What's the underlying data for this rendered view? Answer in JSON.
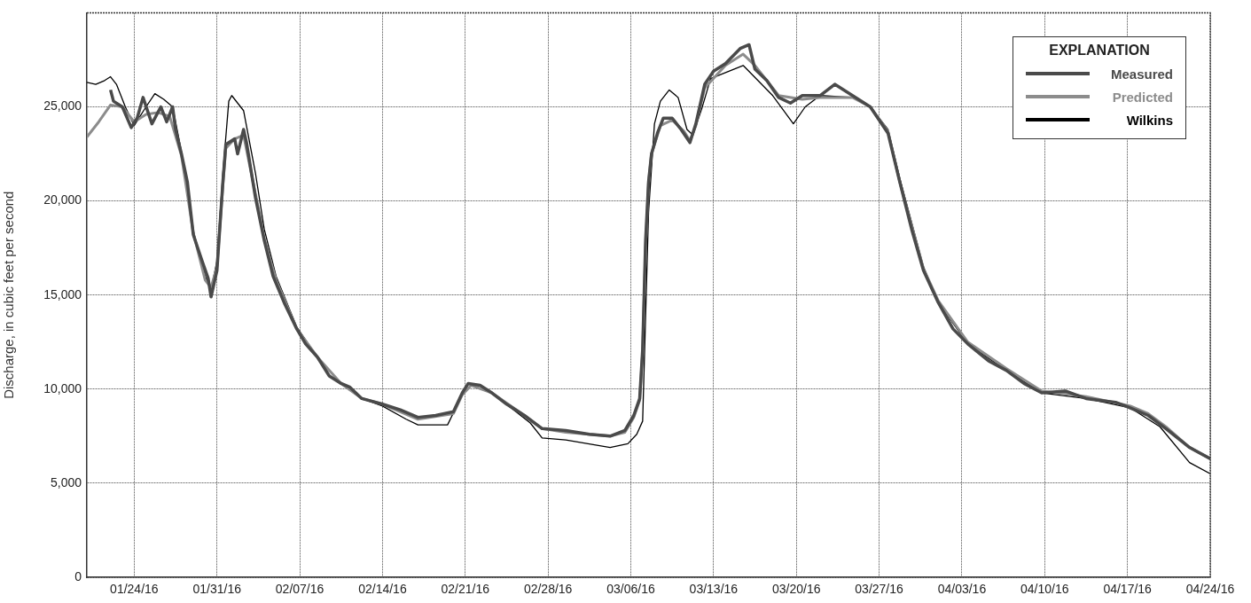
{
  "chart_data": {
    "type": "line",
    "ylabel": "Discharge, in cubic feet per second",
    "legend_title": "EXPLANATION",
    "legend": "top right",
    "grid": true,
    "xlim": [
      "--01-20",
      "--04-24"
    ],
    "ylim": [
      0,
      30000
    ],
    "xticks": [
      {
        "value": "--01-24",
        "label": "01/24/16"
      },
      {
        "value": "--01-31",
        "label": "01/31/16"
      },
      {
        "value": "--02-07",
        "label": "02/07/16"
      },
      {
        "value": "--02-14",
        "label": "02/14/16"
      },
      {
        "value": "--02-21",
        "label": "02/21/16"
      },
      {
        "value": "--02-28",
        "label": "02/28/16"
      },
      {
        "value": "--03-06",
        "label": "03/06/16"
      },
      {
        "value": "--03-13",
        "label": "03/13/16"
      },
      {
        "value": "--03-20",
        "label": "03/20/16"
      },
      {
        "value": "--03-27",
        "label": "03/27/16"
      },
      {
        "value": "--04-03",
        "label": "04/03/16"
      },
      {
        "value": "--04-10",
        "label": "04/10/16"
      },
      {
        "value": "--04-17",
        "label": "04/17/16"
      },
      {
        "value": "--04-24",
        "label": "04/24/16"
      }
    ],
    "yticks": [
      0,
      {
        "value": 5000,
        "label": "5,000"
      },
      {
        "value": 10000,
        "label": "10,000"
      },
      {
        "value": 15000,
        "label": "15,000"
      },
      {
        "value": 20000,
        "label": "20,000"
      },
      {
        "value": 25000,
        "label": "25,000"
      }
    ],
    "series": [
      {
        "name": "Measured",
        "color": "#4a4a4a",
        "x": [
          "--01-22",
          "--01-22T06:00",
          "--01-23",
          "--01-23T18:00",
          "--01-24T06:00",
          "--01-24T18:00",
          "--01-25T12:00",
          "--01-26T06:00",
          "--01-26T18:00",
          "--01-27T06:00",
          "--01-27T12:00",
          "--01-28",
          "--01-28T12:00",
          "--01-29",
          "--01-29T18:00",
          "--01-30T06:00",
          "--01-30T12:00",
          "--01-31",
          "--01-31T12:00",
          "--01-31T18:00",
          "--02-01T12:00",
          "--02-01T18:00",
          "--02-02T06:00",
          "--02-02T12:00",
          "--02-03T06:00",
          "--02-04",
          "--02-04T18:00",
          "--02-05T18:00",
          "--02-06T18:00",
          "--02-07T12:00",
          "--02-08T12:00",
          "--02-09T12:00",
          "--02-10T12:00",
          "--02-11T06:00",
          "--02-12T06:00",
          "--02-14",
          "--02-15T12:00",
          "--02-17",
          "--02-18T12:00",
          "--02-20",
          "--02-20T18:00",
          "--02-21T06:00",
          "--02-22T06:00",
          "--02-23T06:00",
          "--02-24T12:00",
          "--02-26",
          "--02-27T12:00",
          "--02-29T12:00",
          "--03-02T12:00",
          "--03-04T06:00",
          "--03-05T12:00",
          "--03-06T06:00",
          "--03-06T18:00",
          "--03-07",
          "--03-07T06:00",
          "--03-07T12:00",
          "--03-07T18:00",
          "--03-08T06:00",
          "--03-08T18:00",
          "--03-09T12:00",
          "--03-10T06:00",
          "--03-11",
          "--03-11T12:00",
          "--03-12T06:00",
          "--03-13",
          "--03-14",
          "--03-15T06:00",
          "--03-16",
          "--03-16T12:00",
          "--03-17T12:00",
          "--03-18T12:00",
          "--03-19T12:00",
          "--03-20T12:00",
          "--03-22",
          "--03-23T06:00",
          "--03-24T18:00",
          "--03-26T06:00",
          "--03-27T18:00",
          "--03-28T18:00",
          "--03-29T18:00",
          "--03-30T18:00",
          "--04-01",
          "--04-02T06:00",
          "--04-03T12:00",
          "--04-05T06:00",
          "--04-06T18:00",
          "--04-08T06:00",
          "--04-09T18:00",
          "--04-11T18:00",
          "--04-13T12:00",
          "--04-16",
          "--04-17T06:00",
          "--04-18T18:00",
          "--04-20T06:00",
          "--04-22T06:00",
          "--04-24"
        ],
        "values": [
          25900,
          25300,
          25000,
          23900,
          24400,
          25500,
          24100,
          25000,
          24200,
          25000,
          23800,
          22500,
          21000,
          18200,
          16800,
          15900,
          14900,
          16300,
          21000,
          23000,
          23300,
          22500,
          23800,
          23100,
          20200,
          17900,
          16000,
          14500,
          13200,
          12400,
          11700,
          10700,
          10300,
          10100,
          9500,
          9200,
          8900,
          8500,
          8600,
          8800,
          9800,
          10300,
          10200,
          9800,
          9200,
          8600,
          7900,
          7800,
          7600,
          7500,
          7800,
          8600,
          9500,
          12100,
          17900,
          21000,
          22500,
          23600,
          24400,
          24400,
          23800,
          23100,
          24100,
          26200,
          26900,
          27300,
          28100,
          28300,
          27000,
          26400,
          25500,
          25200,
          25600,
          25600,
          26200,
          25600,
          25000,
          23600,
          21000,
          18500,
          16300,
          14600,
          13200,
          12400,
          11500,
          11000,
          10300,
          9800,
          9900,
          9500,
          9300,
          9000,
          8600,
          7900,
          6900,
          6300
        ]
      },
      {
        "name": "Predicted",
        "color": "#8c8c8c",
        "x": [
          "--01-20",
          "--01-21",
          "--01-22",
          "--01-23",
          "--01-24",
          "--01-25",
          "--01-26",
          "--01-27",
          "--01-28",
          "--01-29",
          "--01-30",
          "--01-30T12:00",
          "--01-31",
          "--01-31T12:00",
          "--01-31T18:00",
          "--02-01T12:00",
          "--02-02T06:00",
          "--02-03T06:00",
          "--02-04",
          "--02-05",
          "--02-06T18:00",
          "--02-08T12:00",
          "--02-10T12:00",
          "--02-12T06:00",
          "--02-14",
          "--02-17",
          "--02-20",
          "--02-20T18:00",
          "--02-21T12:00",
          "--02-23T06:00",
          "--02-26",
          "--02-27T12:00",
          "--02-29T12:00",
          "--03-04T06:00",
          "--03-05T12:00",
          "--03-06T06:00",
          "--03-06T18:00",
          "--03-07",
          "--03-07T06:00",
          "--03-07T12:00",
          "--03-07T18:00",
          "--03-08T12:00",
          "--03-09T12:00",
          "--03-10T12:00",
          "--03-11",
          "--03-11T12:00",
          "--03-12T06:00",
          "--03-14",
          "--03-15T12:00",
          "--03-16T12:00",
          "--03-18T12:00",
          "--03-20T12:00",
          "--03-22",
          "--03-24T18:00",
          "--03-26T06:00",
          "--03-27T18:00",
          "--03-28T18:00",
          "--03-30T18:00",
          "--04-01",
          "--04-03T12:00",
          "--04-06T18:00",
          "--04-09T18:00",
          "--04-13T12:00",
          "--04-17T06:00",
          "--04-18T18:00",
          "--04-20T06:00",
          "--04-22T06:00",
          "--04-24"
        ],
        "values": [
          23400,
          24200,
          25100,
          25000,
          24200,
          24600,
          24700,
          24500,
          22400,
          18300,
          15800,
          15400,
          16500,
          20800,
          22800,
          23300,
          23500,
          20400,
          18000,
          15800,
          13200,
          11700,
          10300,
          9500,
          9200,
          8400,
          8700,
          9700,
          10200,
          9800,
          8600,
          7900,
          7700,
          7500,
          7700,
          8500,
          9400,
          12000,
          17500,
          21000,
          22500,
          24000,
          24300,
          23700,
          23200,
          24000,
          26000,
          27200,
          27800,
          27200,
          25600,
          25400,
          25500,
          25500,
          25000,
          23700,
          21000,
          16400,
          14700,
          12500,
          11100,
          9900,
          9600,
          9100,
          8700,
          8000,
          6900,
          6300
        ]
      },
      {
        "name": "Wilkins",
        "color": "#000000",
        "x": [
          "--01-20",
          "--01-20T18:00",
          "--01-21T12:00",
          "--01-22",
          "--01-22T12:00",
          "--01-23T06:00",
          "--01-24",
          "--01-25",
          "--01-25T18:00",
          "--01-26T12:00",
          "--01-27T06:00",
          "--01-28",
          "--01-29",
          "--01-30",
          "--01-30T12:00",
          "--01-31",
          "--01-31T12:00",
          "--02-01",
          "--02-01T06:00",
          "--02-02T06:00",
          "--02-03T06:00",
          "--02-04",
          "--02-05",
          "--02-06T18:00",
          "--02-08T12:00",
          "--02-10T12:00",
          "--02-12T06:00",
          "--02-14",
          "--02-16",
          "--02-17",
          "--02-19T12:00",
          "--02-20T18:00",
          "--02-21T12:00",
          "--02-23T06:00",
          "--02-26T12:00",
          "--02-27T12:00",
          "--02-29T12:00",
          "--03-04T06:00",
          "--03-05T18:00",
          "--03-06T12:00",
          "--03-07",
          "--03-07T12:00",
          "--03-08",
          "--03-08T12:00",
          "--03-09T06:00",
          "--03-10",
          "--03-10T18:00",
          "--03-11T06:00",
          "--03-12",
          "--03-12T18:00",
          "--03-15T12:00",
          "--03-18",
          "--03-19T18:00",
          "--03-20T18:00",
          "--03-22",
          "--03-24T18:00",
          "--03-26T06:00",
          "--03-27T18:00",
          "--03-28T18:00",
          "--03-30T18:00",
          "--04-01",
          "--04-03T12:00",
          "--04-06T18:00",
          "--04-09T18:00",
          "--04-13T12:00",
          "--04-17T06:00",
          "--04-19T18:00",
          "--04-22T06:00",
          "--04-24"
        ],
        "values": [
          26300,
          26200,
          26400,
          26600,
          26200,
          25000,
          24000,
          25000,
          25700,
          25400,
          25000,
          22600,
          18400,
          16000,
          15300,
          16800,
          21500,
          25300,
          25600,
          24800,
          21500,
          18500,
          16000,
          13300,
          11700,
          10300,
          9500,
          9100,
          8400,
          8100,
          8100,
          9700,
          10200,
          9800,
          8200,
          7400,
          7300,
          6900,
          7100,
          7600,
          8300,
          19400,
          24100,
          25300,
          25900,
          25500,
          23800,
          23500,
          24900,
          26500,
          27200,
          25600,
          24100,
          25000,
          25600,
          25500,
          25000,
          23800,
          21200,
          16500,
          14600,
          12400,
          11000,
          9800,
          9500,
          9000,
          8000,
          6100,
          5500
        ]
      }
    ]
  }
}
